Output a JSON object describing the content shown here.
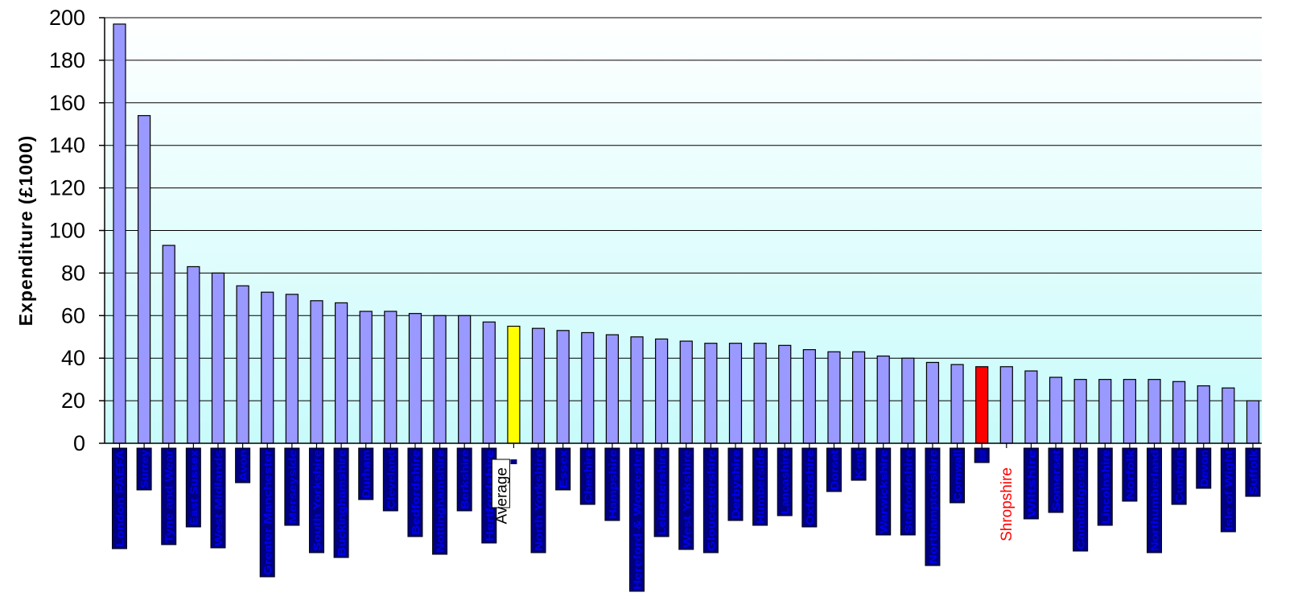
{
  "chart_data": {
    "type": "bar",
    "ylabel": "Expenditure (£1000)",
    "xlabel": "",
    "ylim": [
      0,
      200
    ],
    "yticks": [
      0,
      20,
      40,
      60,
      80,
      100,
      120,
      140,
      160,
      180,
      200
    ],
    "grid": true,
    "colors": {
      "default": "#9999ff",
      "average": "#ffff00",
      "highlight": "#ff0000",
      "label_box": "#000080",
      "label_text": "#0000ee"
    },
    "categories": [
      "London FAEFA",
      "Surrey",
      "Tyne and Wear",
      "East Sussex",
      "West Midlands",
      "Avon",
      "Greater Manchester",
      "Merseyside",
      "South Yorkshire",
      "Buckinghamshire",
      "Durham",
      "Cleveland",
      "Bedfordshire",
      "Nottinghamshire",
      "Berkshire",
      "Hertfordshire",
      "Average",
      "North Yorkshire",
      "Essex",
      "Cheshire",
      "Hampshire",
      "Hereford & Worcester",
      "Leicestershire",
      "West Yorkshire",
      "Gloucestershire",
      "Derbyshire",
      "Humberside",
      "Lancashire",
      "Oxfordshire",
      "Dorset",
      "Kent",
      "Warwickshire",
      "Staffordshire",
      "Northamptonshire",
      "Cornwall",
      "Shropshire",
      "Shropshire",
      "Wiltshire",
      "Somerset",
      "Cambridgeshire",
      "Lincolnshire",
      "Norfolk",
      "Northumberland",
      "Cumbria",
      "Devon",
      "Isle of Wight",
      "Suffolk"
    ],
    "values": [
      197,
      154,
      93,
      83,
      80,
      74,
      71,
      70,
      67,
      66,
      62,
      62,
      61,
      60,
      60,
      57,
      55,
      54,
      53,
      52,
      51,
      50,
      49,
      48,
      47,
      47,
      47,
      46,
      44,
      43,
      43,
      41,
      40,
      38,
      37,
      36,
      36,
      34,
      31,
      30,
      30,
      30,
      30,
      29,
      27,
      26,
      20
    ],
    "bar_roles": [
      "default",
      "default",
      "default",
      "default",
      "default",
      "default",
      "default",
      "default",
      "default",
      "default",
      "default",
      "default",
      "default",
      "default",
      "default",
      "default",
      "average",
      "default",
      "default",
      "default",
      "default",
      "default",
      "default",
      "default",
      "default",
      "default",
      "default",
      "default",
      "default",
      "default",
      "default",
      "default",
      "default",
      "default",
      "default",
      "highlight",
      "default",
      "default",
      "default",
      "default",
      "default",
      "default",
      "default",
      "default",
      "default",
      "default",
      "default"
    ],
    "label_styles": [
      "box",
      "box",
      "box",
      "box",
      "box",
      "box",
      "box",
      "box",
      "box",
      "box",
      "box",
      "box",
      "box",
      "box",
      "box",
      "box",
      "plain",
      "box",
      "box",
      "box",
      "box",
      "box",
      "box",
      "box",
      "box",
      "box",
      "box",
      "box",
      "box",
      "box",
      "box",
      "box",
      "box",
      "box",
      "box",
      "box-short",
      "plain-red",
      "box",
      "box",
      "box",
      "box",
      "box",
      "box",
      "box",
      "box",
      "box",
      "box"
    ]
  }
}
